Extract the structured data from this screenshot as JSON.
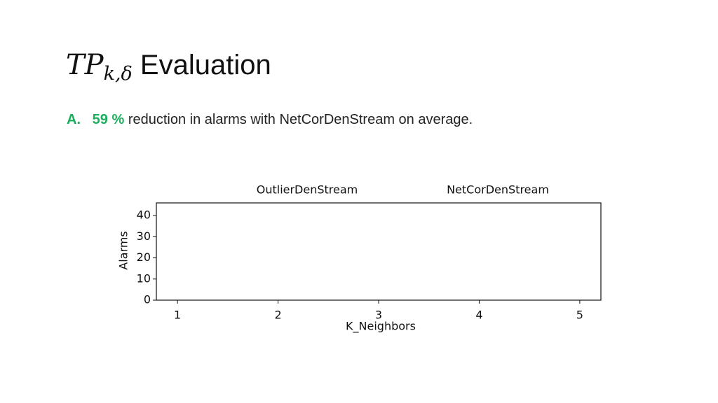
{
  "slide": {
    "title": {
      "math": "TP",
      "subscript": "k,δ",
      "text": "Evaluation"
    },
    "bullet": {
      "marker": "A.",
      "highlight": "59 %",
      "text": "reduction in alarms with NetCorDenStream on average."
    }
  },
  "chart_data": {
    "type": "line",
    "x": [
      1,
      2,
      3,
      4,
      5
    ],
    "series": [
      {
        "name": "OutlierDenStream",
        "values": [
          null,
          null,
          null,
          null,
          null
        ]
      },
      {
        "name": "NetCorDenStream",
        "values": [
          null,
          null,
          null,
          null,
          null
        ]
      }
    ],
    "xlabel": "K_Neighbors",
    "ylabel": "Alarms",
    "xlim": [
      0.79,
      5.21
    ],
    "xticks": [
      1,
      2,
      3,
      4,
      5
    ],
    "ylim": [
      0,
      46
    ],
    "yticks": [
      0,
      10,
      20,
      30,
      40
    ]
  }
}
